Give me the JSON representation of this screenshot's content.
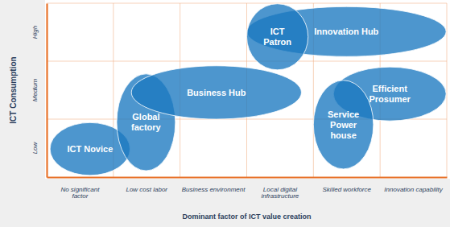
{
  "chart_data": {
    "type": "ellipse",
    "x_label": "Dominant factor of ICT value creation",
    "y_label": "ICT Consumption",
    "categories": [
      "No significant factor",
      "Low cost labor",
      "Business environment",
      "Local digital infrastructure",
      "Skilled workforce",
      "Innovation capability"
    ],
    "y_categories": [
      "Low",
      "Medium",
      "High"
    ],
    "grid": true,
    "color": "#1b78c0",
    "regions": [
      {
        "lines": [
          "ICT Novice"
        ],
        "x": [
          0.05,
          1.25
        ],
        "y": [
          0.03,
          0.94
        ]
      },
      {
        "lines": [
          "Global",
          "factory"
        ],
        "x": [
          1.05,
          1.93
        ],
        "y": [
          0.11,
          1.78
        ]
      },
      {
        "lines": [
          "Business Hub"
        ],
        "x": [
          1.27,
          3.82
        ],
        "y": [
          1.0,
          1.92
        ]
      },
      {
        "lines": [
          "Innovation Hub"
        ],
        "x": [
          3.0,
          5.99
        ],
        "y": [
          2.08,
          2.94
        ]
      },
      {
        "lines": [
          "ICT",
          "Patron"
        ],
        "x": [
          3.0,
          3.92
        ],
        "y": [
          1.85,
          2.99
        ]
      },
      {
        "lines": [
          "Efficient",
          "Prosumer"
        ],
        "x": [
          4.3,
          5.99
        ],
        "y": [
          0.97,
          1.9
        ]
      },
      {
        "lines": [
          "Service",
          "Power",
          "house"
        ],
        "x": [
          4.0,
          4.9
        ],
        "y": [
          0.14,
          1.67
        ]
      }
    ]
  }
}
